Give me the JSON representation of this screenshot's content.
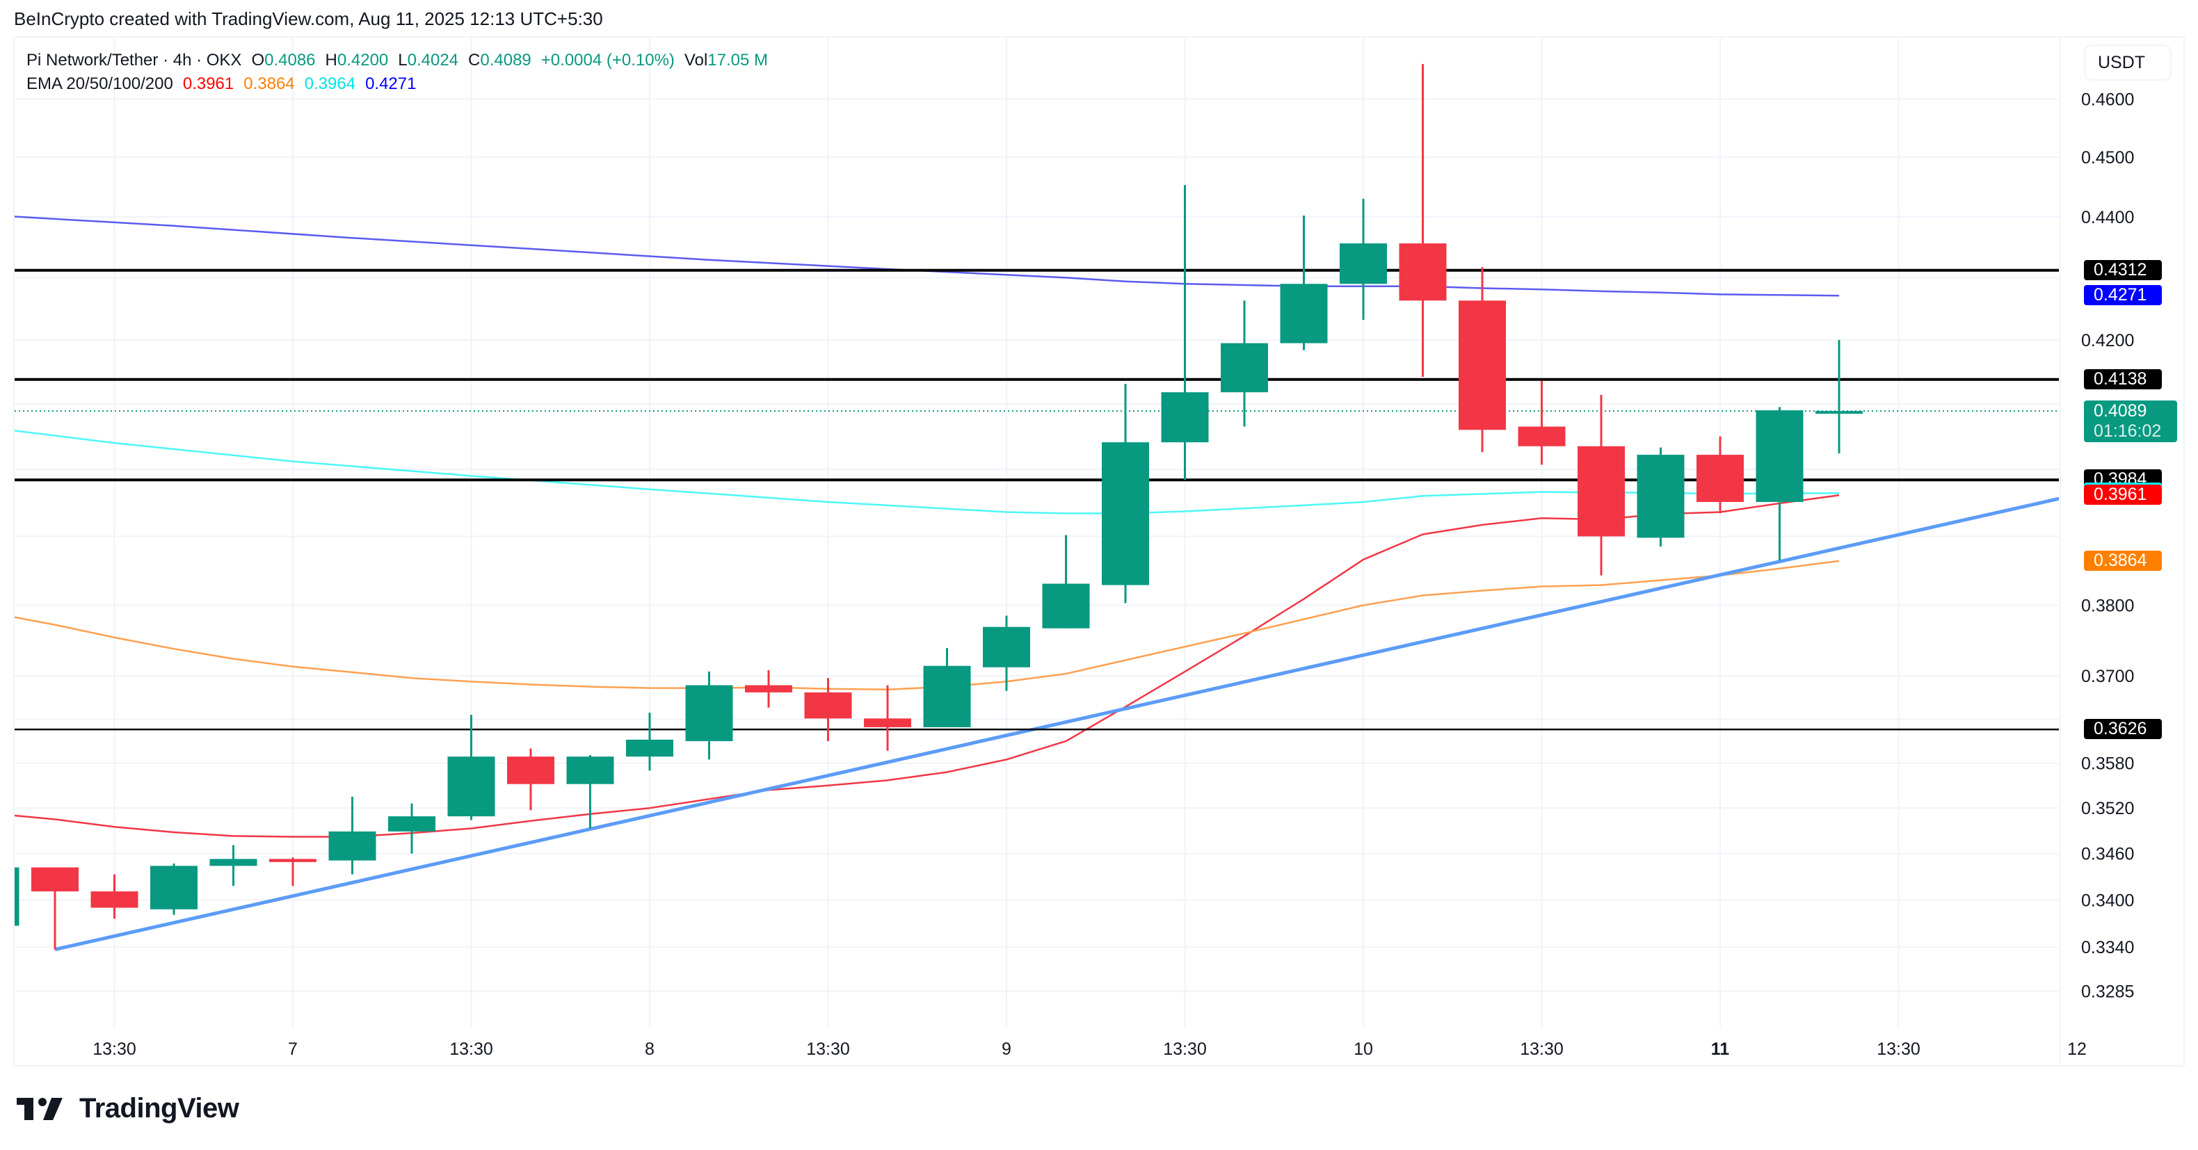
{
  "header": {
    "caption": "BeInCrypto created with TradingView.com, Aug 11, 2025 12:13 UTC+5:30"
  },
  "legend": {
    "symbol": "Pi Network/Tether · 4h · OKX",
    "o_label": "O",
    "o_value": "0.4086",
    "h_label": "H",
    "h_value": "0.4200",
    "l_label": "L",
    "l_value": "0.4024",
    "c_label": "C",
    "c_value": "0.4089",
    "change": "+0.0004 (+0.10%)",
    "vol_label": "Vol",
    "vol_value": "17.05 M",
    "ema_label": "EMA 20/50/100/200",
    "ema20": "0.3961",
    "ema50": "0.3864",
    "ema100": "0.3964",
    "ema200": "0.4271"
  },
  "axis": {
    "unit": "USDT",
    "price_ticks": [
      "0.4600",
      "0.4500",
      "0.4400",
      "0.4200",
      "0.3800",
      "0.3700",
      "0.3580",
      "0.3520",
      "0.3460",
      "0.3400",
      "0.3340",
      "0.3285"
    ],
    "hidden_ticks": [
      "0.4300",
      "0.4100",
      "0.4000",
      "0.3900",
      "0.3640"
    ],
    "time_ticks": [
      {
        "label": "13:30",
        "idx": 2
      },
      {
        "label": "7",
        "idx": 5
      },
      {
        "label": "13:30",
        "idx": 8
      },
      {
        "label": "8",
        "idx": 11
      },
      {
        "label": "13:30",
        "idx": 14
      },
      {
        "label": "9",
        "idx": 17
      },
      {
        "label": "13:30",
        "idx": 20
      },
      {
        "label": "10",
        "idx": 23
      },
      {
        "label": "13:30",
        "idx": 26
      },
      {
        "label": "11",
        "idx": 29
      },
      {
        "label": "13:30",
        "idx": 32
      },
      {
        "label": "12",
        "idx": 35
      }
    ]
  },
  "price_labels": [
    {
      "text": "0.4312",
      "price": 0.4312,
      "bg": "#000000",
      "fg": "#ffffff"
    },
    {
      "text": "0.4271",
      "price": 0.4271,
      "bg": "#0000ff",
      "fg": "#ffffff",
      "dy": 31
    },
    {
      "text": "0.4138",
      "price": 0.4138,
      "bg": "#000000",
      "fg": "#ffffff"
    },
    {
      "text": "0.4089",
      "sub": "01:16:02",
      "price": 0.4089,
      "bg": "#089981",
      "fg": "#ffffff",
      "last": true,
      "dy": 12
    },
    {
      "text": "0.3984",
      "price": 0.3984,
      "bg": "#000000",
      "fg": "#ffffff"
    },
    {
      "text": "0.3964",
      "price": 0.3964,
      "bg": "#00ffff",
      "fg": "#000000",
      "dy": 31
    },
    {
      "text": "0.3961",
      "price": 0.3961,
      "bg": "#ff0000",
      "fg": "#ffffff",
      "dy": 48
    },
    {
      "text": "0.3864",
      "price": 0.3864,
      "bg": "#ff7f00",
      "fg": "#ffffff",
      "dy": 34
    },
    {
      "text": "0.3626",
      "price": 0.3626,
      "bg": "#000000",
      "fg": "#ffffff"
    }
  ],
  "logo": {
    "text": "TradingView"
  },
  "colors": {
    "up": "#089981",
    "down": "#f23645",
    "ema20": "#f23645",
    "ema50": "#ffa050",
    "ema100": "#4df7f7",
    "ema200": "#5b5bf0",
    "trendline": "#5b9cf6",
    "hline": "#000000",
    "grid": "#f0f3fa"
  },
  "chart_data": {
    "type": "candlestick",
    "title": "Pi Network/Tether · 4h · OKX",
    "ylabel": "USDT",
    "yscale": "log",
    "ylim": [
      0.3245,
      0.4725
    ],
    "x_labels": [
      "13:30",
      "7",
      "13:30",
      "8",
      "13:30",
      "9",
      "13:30",
      "10",
      "13:30",
      "11",
      "13:30",
      "12"
    ],
    "candles": [
      {
        "o": 0.3367,
        "h": 0.3442,
        "l": 0.3367,
        "c": 0.3442
      },
      {
        "o": 0.3442,
        "h": 0.3427,
        "l": 0.3337,
        "c": 0.3411,
        "note": "swap"
      },
      {
        "o": 0.3411,
        "h": 0.3433,
        "l": 0.3376,
        "c": 0.339
      },
      {
        "o": 0.3388,
        "h": 0.3447,
        "l": 0.3381,
        "c": 0.3444
      },
      {
        "o": 0.3444,
        "h": 0.3471,
        "l": 0.3418,
        "c": 0.3453
      },
      {
        "o": 0.3453,
        "h": 0.3455,
        "l": 0.3418,
        "c": 0.3449
      },
      {
        "o": 0.3451,
        "h": 0.3535,
        "l": 0.3433,
        "c": 0.3489
      },
      {
        "o": 0.3489,
        "h": 0.3526,
        "l": 0.346,
        "c": 0.3509
      },
      {
        "o": 0.3509,
        "h": 0.3646,
        "l": 0.3504,
        "c": 0.3589
      },
      {
        "o": 0.3589,
        "h": 0.36,
        "l": 0.3517,
        "c": 0.3552
      },
      {
        "o": 0.3552,
        "h": 0.3591,
        "l": 0.3493,
        "c": 0.3589
      },
      {
        "o": 0.3589,
        "h": 0.3649,
        "l": 0.357,
        "c": 0.3612
      },
      {
        "o": 0.361,
        "h": 0.3706,
        "l": 0.3585,
        "c": 0.3687
      },
      {
        "o": 0.3687,
        "h": 0.3708,
        "l": 0.3656,
        "c": 0.3677
      },
      {
        "o": 0.3677,
        "h": 0.3697,
        "l": 0.361,
        "c": 0.3641
      },
      {
        "o": 0.3641,
        "h": 0.3687,
        "l": 0.3597,
        "c": 0.3629
      },
      {
        "o": 0.3629,
        "h": 0.3739,
        "l": 0.3629,
        "c": 0.3714
      },
      {
        "o": 0.3712,
        "h": 0.3785,
        "l": 0.3679,
        "c": 0.3769
      },
      {
        "o": 0.3767,
        "h": 0.3902,
        "l": 0.3767,
        "c": 0.3831
      },
      {
        "o": 0.3829,
        "h": 0.4131,
        "l": 0.3803,
        "c": 0.4041
      },
      {
        "o": 0.4041,
        "h": 0.4453,
        "l": 0.3984,
        "c": 0.4118
      },
      {
        "o": 0.4118,
        "h": 0.4263,
        "l": 0.4065,
        "c": 0.4195
      },
      {
        "o": 0.4195,
        "h": 0.4402,
        "l": 0.4184,
        "c": 0.429
      },
      {
        "o": 0.429,
        "h": 0.443,
        "l": 0.4232,
        "c": 0.4356
      },
      {
        "o": 0.4356,
        "h": 0.4661,
        "l": 0.4142,
        "c": 0.4263
      },
      {
        "o": 0.4263,
        "h": 0.4317,
        "l": 0.4026,
        "c": 0.406
      },
      {
        "o": 0.4065,
        "h": 0.4136,
        "l": 0.4007,
        "c": 0.4035
      },
      {
        "o": 0.4035,
        "h": 0.4114,
        "l": 0.3843,
        "c": 0.39
      },
      {
        "o": 0.3898,
        "h": 0.4033,
        "l": 0.3885,
        "c": 0.4022
      },
      {
        "o": 0.4022,
        "h": 0.405,
        "l": 0.3934,
        "c": 0.3951
      },
      {
        "o": 0.3951,
        "h": 0.4095,
        "l": 0.3865,
        "c": 0.409
      },
      {
        "o": 0.4086,
        "h": 0.42,
        "l": 0.4024,
        "c": 0.4089
      }
    ],
    "series": [
      {
        "name": "EMA 20",
        "color": "#f23645",
        "points": [
          [
            -0.5,
            0.3516
          ],
          [
            1,
            0.3505
          ],
          [
            2,
            0.3495
          ],
          [
            3,
            0.3488
          ],
          [
            4,
            0.3483
          ],
          [
            5,
            0.3482
          ],
          [
            6,
            0.3482
          ],
          [
            7,
            0.3487
          ],
          [
            8,
            0.3493
          ],
          [
            9,
            0.3503
          ],
          [
            10,
            0.3512
          ],
          [
            11,
            0.352
          ],
          [
            12,
            0.3532
          ],
          [
            13,
            0.3544
          ],
          [
            14,
            0.355
          ],
          [
            15,
            0.3557
          ],
          [
            16,
            0.3568
          ],
          [
            17,
            0.3585
          ],
          [
            18,
            0.361
          ],
          [
            19,
            0.3657
          ],
          [
            20,
            0.3706
          ],
          [
            21,
            0.3756
          ],
          [
            22,
            0.3809
          ],
          [
            23,
            0.3866
          ],
          [
            24,
            0.3903
          ],
          [
            25,
            0.3917
          ],
          [
            26,
            0.3927
          ],
          [
            27,
            0.3925
          ],
          [
            28,
            0.3933
          ],
          [
            29,
            0.3936
          ],
          [
            30,
            0.3949
          ],
          [
            31,
            0.3961
          ]
        ]
      },
      {
        "name": "EMA 50",
        "color": "#ffa050",
        "points": [
          [
            -0.5,
            0.3796
          ],
          [
            1,
            0.3772
          ],
          [
            2,
            0.3754
          ],
          [
            3,
            0.3738
          ],
          [
            4,
            0.3724
          ],
          [
            5,
            0.3713
          ],
          [
            6,
            0.3705
          ],
          [
            7,
            0.3697
          ],
          [
            8,
            0.3692
          ],
          [
            9,
            0.3688
          ],
          [
            10,
            0.3685
          ],
          [
            11,
            0.3683
          ],
          [
            12,
            0.3683
          ],
          [
            13,
            0.3684
          ],
          [
            14,
            0.3682
          ],
          [
            15,
            0.3681
          ],
          [
            16,
            0.3685
          ],
          [
            17,
            0.3692
          ],
          [
            18,
            0.3703
          ],
          [
            19,
            0.3722
          ],
          [
            20,
            0.3741
          ],
          [
            21,
            0.376
          ],
          [
            22,
            0.378
          ],
          [
            23,
            0.38
          ],
          [
            24,
            0.3814
          ],
          [
            25,
            0.3821
          ],
          [
            26,
            0.3827
          ],
          [
            27,
            0.3829
          ],
          [
            28,
            0.3836
          ],
          [
            29,
            0.3843
          ],
          [
            30,
            0.3853
          ],
          [
            31,
            0.3864
          ]
        ]
      },
      {
        "name": "EMA 100",
        "color": "#4df7f7",
        "points": [
          [
            -0.5,
            0.4068
          ],
          [
            2,
            0.404
          ],
          [
            5,
            0.4012
          ],
          [
            8,
            0.399
          ],
          [
            11,
            0.397
          ],
          [
            14,
            0.3951
          ],
          [
            17,
            0.3936
          ],
          [
            18,
            0.3934
          ],
          [
            19,
            0.3934
          ],
          [
            20,
            0.3937
          ],
          [
            22,
            0.3946
          ],
          [
            23,
            0.3951
          ],
          [
            24,
            0.396
          ],
          [
            25,
            0.3963
          ],
          [
            26,
            0.3966
          ],
          [
            27,
            0.3965
          ],
          [
            28,
            0.3965
          ],
          [
            29,
            0.3963
          ],
          [
            30,
            0.3964
          ],
          [
            31,
            0.3964
          ]
        ]
      },
      {
        "name": "EMA 200",
        "color": "#5b5bf0",
        "points": [
          [
            -0.5,
            0.4405
          ],
          [
            3,
            0.4385
          ],
          [
            6,
            0.4365
          ],
          [
            9,
            0.4347
          ],
          [
            12,
            0.4329
          ],
          [
            15,
            0.4314
          ],
          [
            18,
            0.43
          ],
          [
            19,
            0.4294
          ],
          [
            20,
            0.429
          ],
          [
            22,
            0.4286
          ],
          [
            24,
            0.4286
          ],
          [
            25,
            0.4283
          ],
          [
            26,
            0.4281
          ],
          [
            27,
            0.4278
          ],
          [
            28,
            0.4276
          ],
          [
            29,
            0.4273
          ],
          [
            30,
            0.4272
          ],
          [
            31,
            0.4271
          ]
        ]
      },
      {
        "name": "Trendline",
        "color": "#5b9cf6",
        "points": [
          [
            1,
            0.3337
          ],
          [
            35.7,
            0.3976
          ]
        ]
      }
    ],
    "hlines": [
      0.4312,
      0.4138,
      0.3984,
      0.3626
    ],
    "last_price_line": 0.4089
  }
}
